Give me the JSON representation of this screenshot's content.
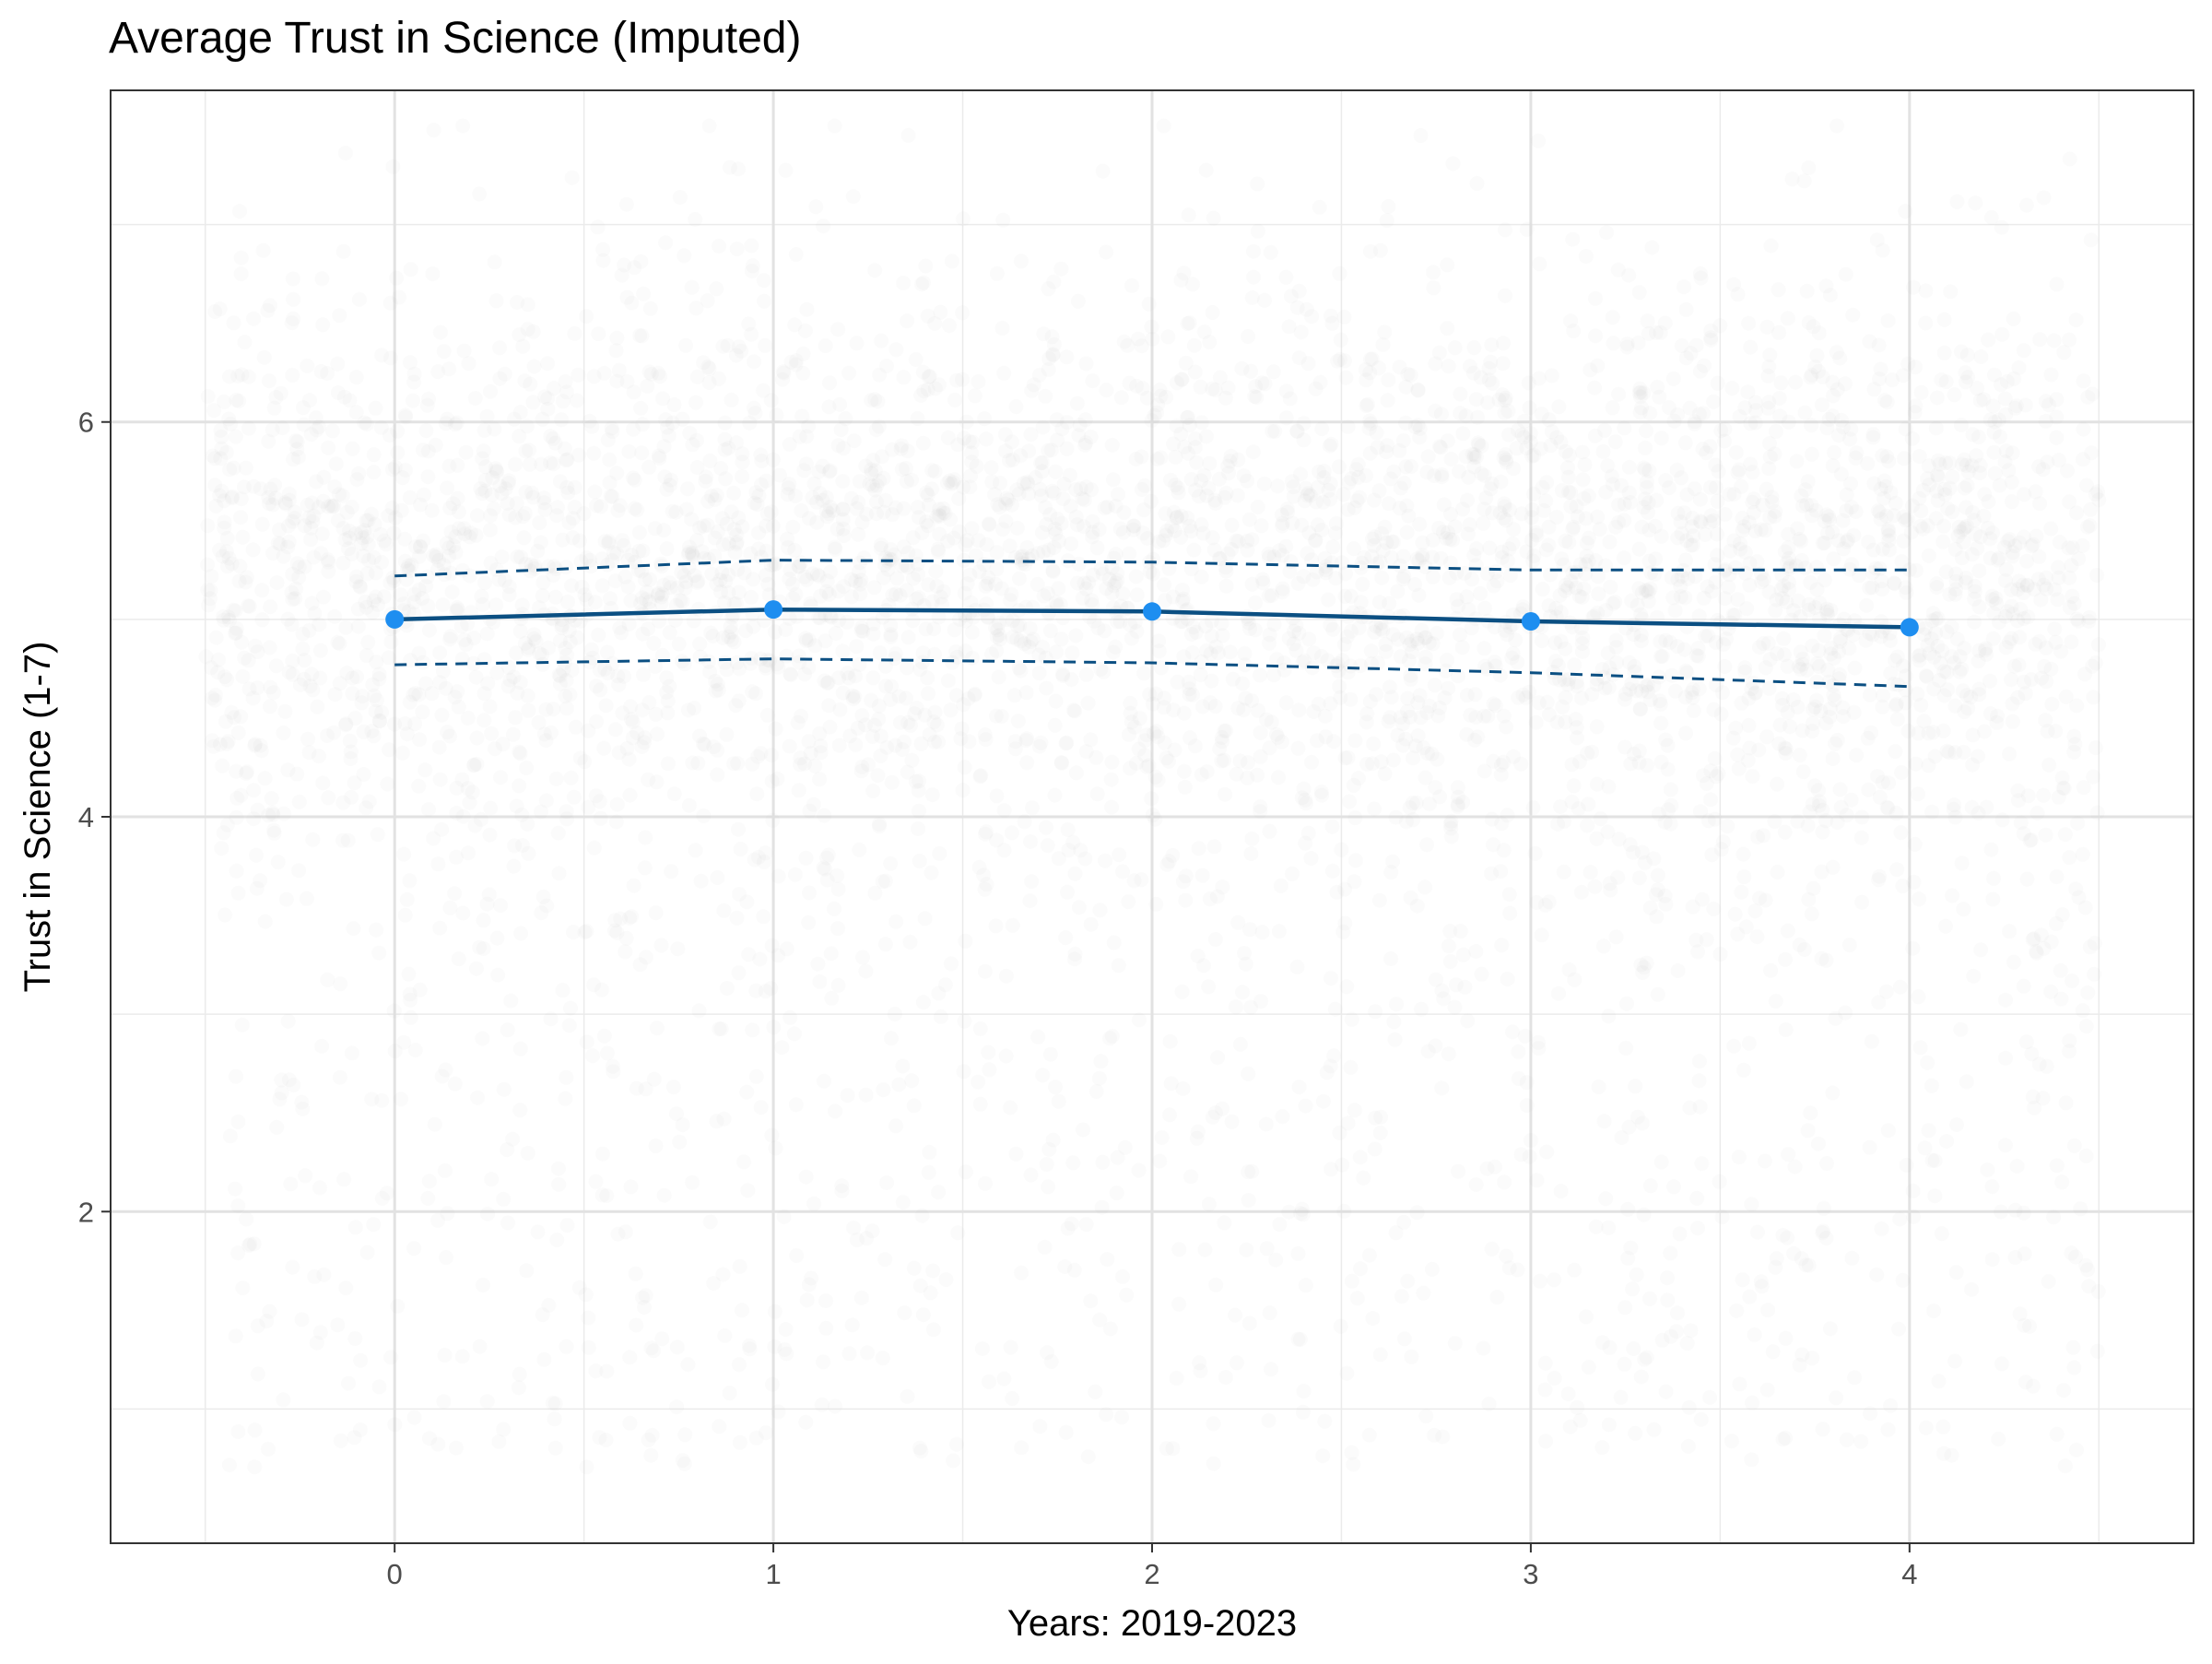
{
  "chart_data": {
    "type": "line",
    "title": "Average Trust in Science (Imputed)",
    "xlabel": "Years: 2019-2023",
    "ylabel": "Trust in Science (1-7)",
    "x": [
      0,
      1,
      2,
      3,
      4
    ],
    "series": [
      {
        "role": "mean",
        "values": [
          5.0,
          5.05,
          5.04,
          4.99,
          4.96
        ],
        "color": "#0b4f82",
        "marker_color": "#1e8ef0",
        "line_style": "solid"
      },
      {
        "role": "upper-bound",
        "values": [
          5.22,
          5.3,
          5.29,
          5.25,
          5.25
        ],
        "color": "#0b4f82",
        "line_style": "dashed"
      },
      {
        "role": "lower-bound",
        "values": [
          4.77,
          4.8,
          4.78,
          4.73,
          4.66
        ],
        "color": "#0b4f82",
        "line_style": "dashed"
      }
    ],
    "background_points": {
      "description": "individual imputed responses, jittered, very low opacity",
      "color": "#bbbbbb",
      "x_range": [
        -0.5,
        4.5
      ],
      "y_range": [
        0.7,
        7.5
      ]
    },
    "xlim": [
      -0.75,
      4.75
    ],
    "ylim": [
      0.32,
      7.68
    ],
    "x_ticks": [
      0,
      1,
      2,
      3,
      4
    ],
    "y_ticks": [
      2,
      4,
      6
    ],
    "grid": true,
    "legend": "none",
    "theme": "bw"
  }
}
